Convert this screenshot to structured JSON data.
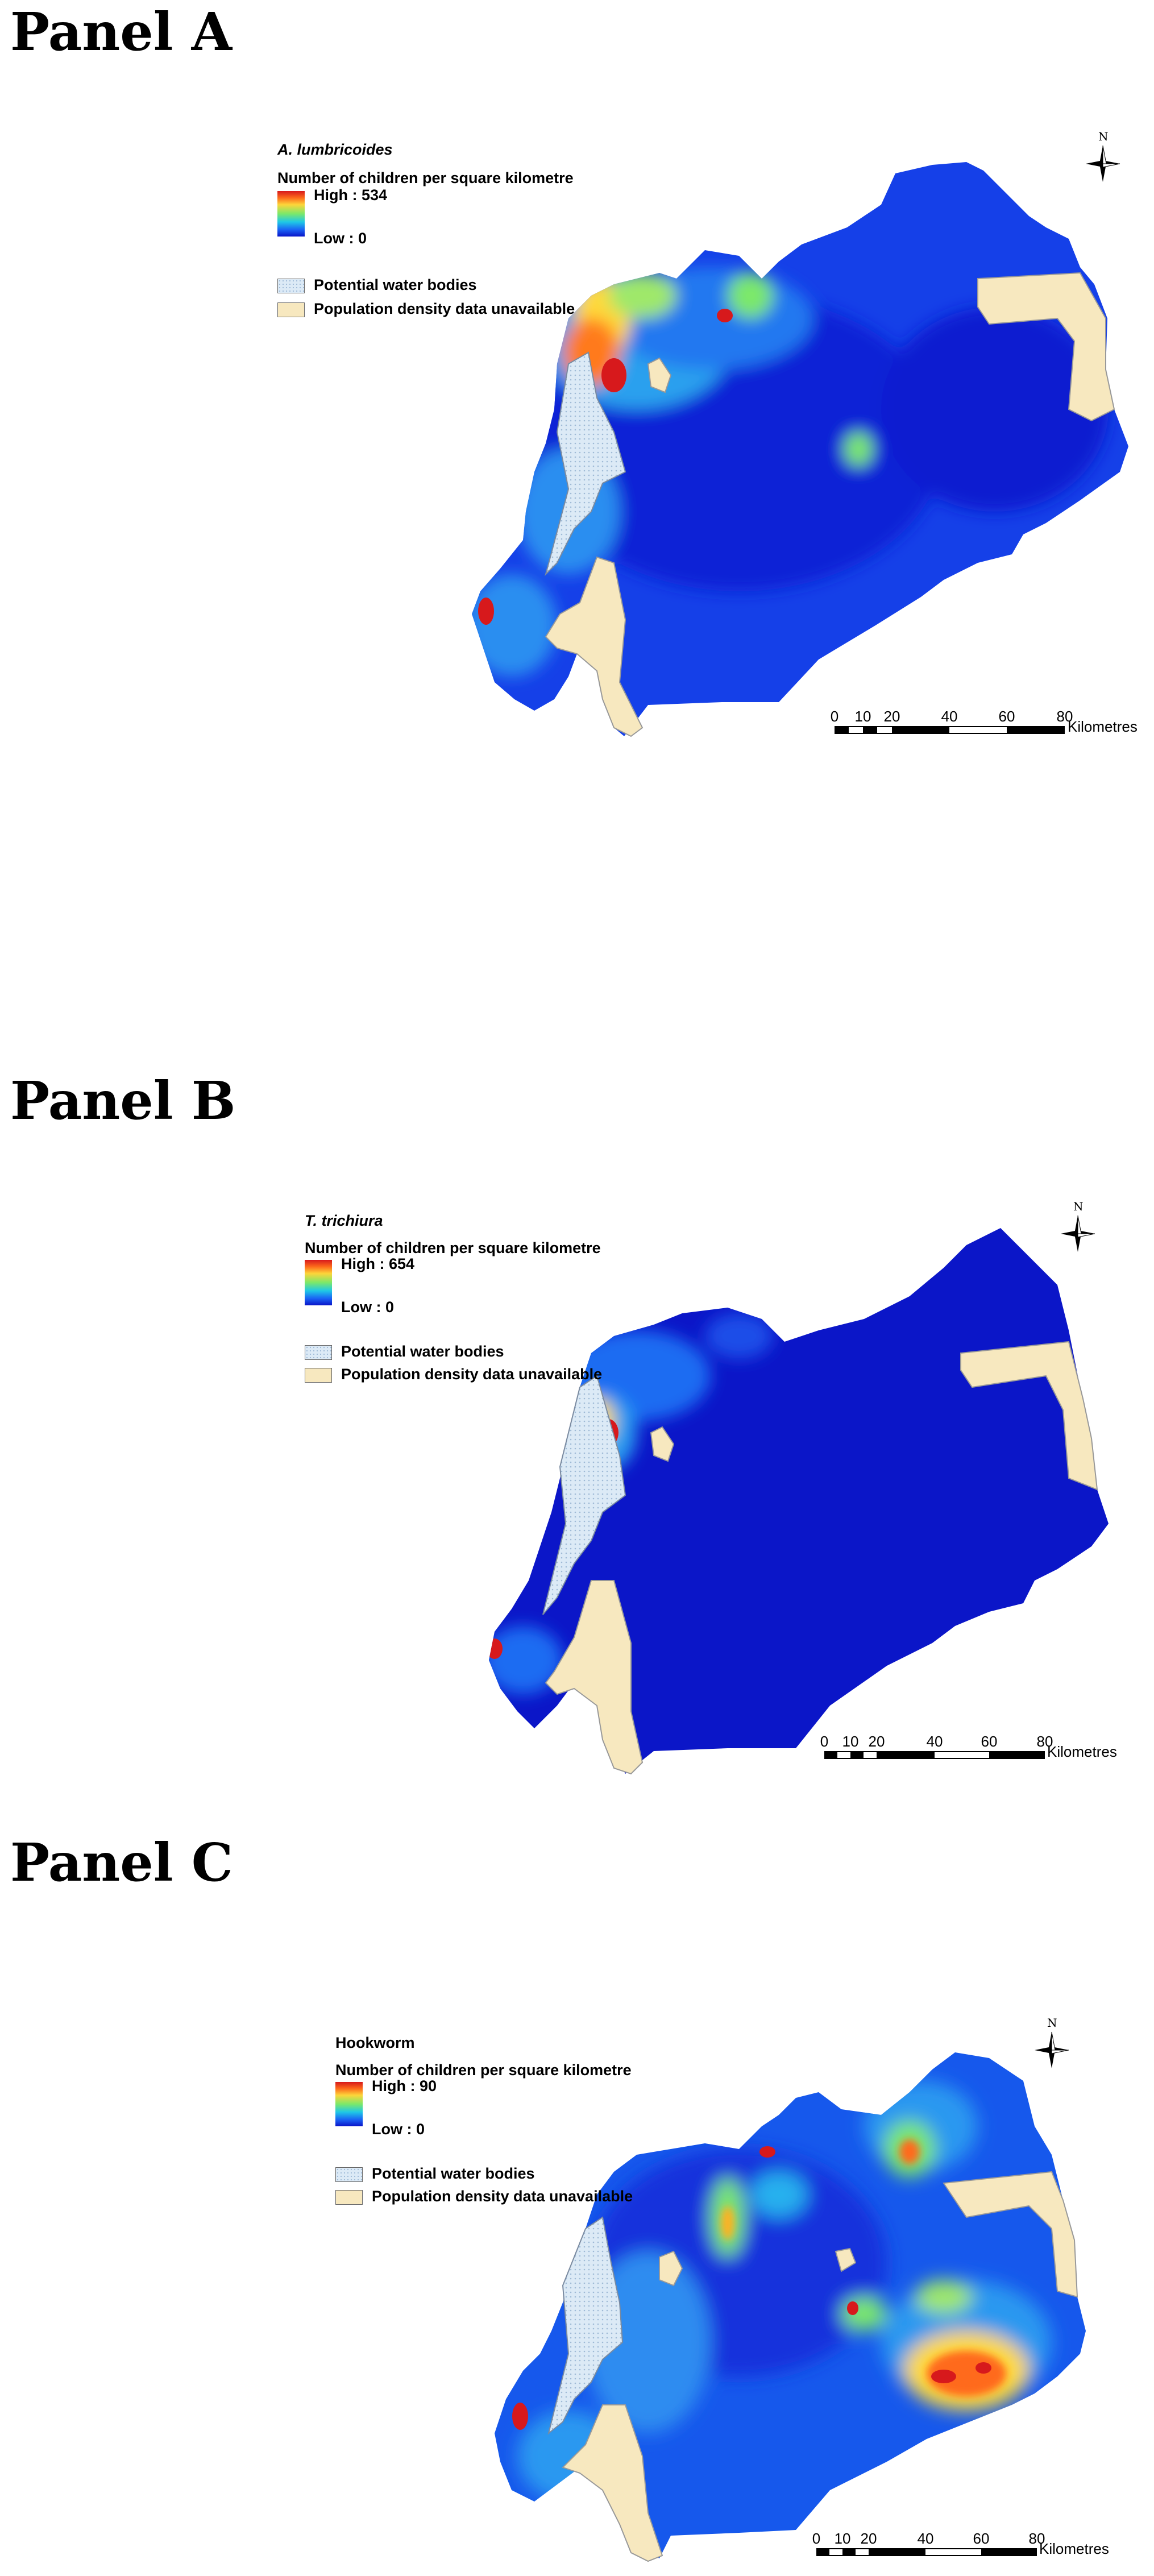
{
  "panels": [
    {
      "id": "A",
      "heading": "Panel A",
      "species": "A. lumbricoides",
      "species_italic": true,
      "legend_title": "Number of children per square kilometre",
      "high_label": "High : 534",
      "low_label": "Low : 0",
      "water_label": "Potential water bodies",
      "unavailable_label": "Population density data unavailable",
      "north_label": "N",
      "scale_ticks": [
        "0",
        "10",
        "20",
        "40",
        "60",
        "80"
      ],
      "scale_unit": "Kilometres"
    },
    {
      "id": "B",
      "heading": "Panel B",
      "species": "T. trichiura",
      "species_italic": true,
      "legend_title": "Number of children per square kilometre",
      "high_label": "High : 654",
      "low_label": "Low : 0",
      "water_label": "Potential water bodies",
      "unavailable_label": "Population density data unavailable",
      "north_label": "N",
      "scale_ticks": [
        "0",
        "10",
        "20",
        "40",
        "60",
        "80"
      ],
      "scale_unit": "Kilometres"
    },
    {
      "id": "C",
      "heading": "Panel C",
      "species": "Hookworm",
      "species_italic": false,
      "legend_title": "Number of children per square kilometre",
      "high_label": "High : 90",
      "low_label": "Low : 0",
      "water_label": "Potential water bodies",
      "unavailable_label": "Population density data unavailable",
      "north_label": "N",
      "scale_ticks": [
        "0",
        "10",
        "20",
        "40",
        "60",
        "80"
      ],
      "scale_unit": "Kilometres"
    }
  ],
  "colors": {
    "density_low": "#0a14c8",
    "density_mid": "#1fc8e6",
    "density_high": "#d7191c",
    "water": "#dceaf6",
    "unavailable": "#f7e8bf"
  }
}
